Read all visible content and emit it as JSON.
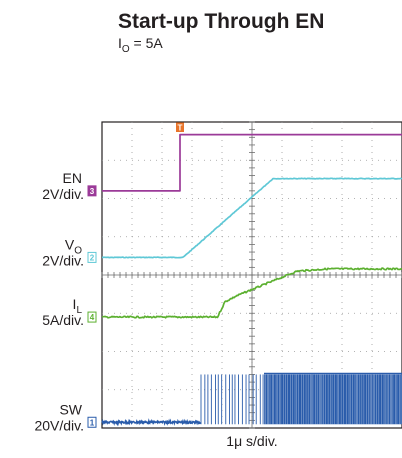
{
  "chart_data": {
    "type": "line",
    "title": "Start-up Through EN",
    "subtitle": {
      "symbol": "I",
      "subscript": "O",
      "rest": " = 5A"
    },
    "xlabel": "1μ s/div.",
    "grid": true,
    "x_divisions": 10,
    "y_divisions": 8,
    "ylim": [
      0,
      8
    ],
    "trigger_marker": {
      "label": "T",
      "color": "#e8742a"
    },
    "series": [
      {
        "name": "EN",
        "subscript": "",
        "scale": "2V/div.",
        "channel": "3",
        "color": "#9b3a98",
        "type": "step",
        "points": [
          [
            0,
            6.2
          ],
          [
            2.6,
            6.2
          ],
          [
            2.6,
            7.67
          ],
          [
            10,
            7.67
          ]
        ]
      },
      {
        "name": "V",
        "subscript": "O",
        "scale": "2V/div.",
        "channel": "2",
        "color": "#5fc8d6",
        "type": "line",
        "points": [
          [
            0,
            4.46
          ],
          [
            2.7,
            4.46
          ],
          [
            5.7,
            6.52
          ],
          [
            10,
            6.52
          ]
        ]
      },
      {
        "name": "I",
        "subscript": "L",
        "scale": "5A/div.",
        "channel": "4",
        "color": "#5cb030",
        "type": "line",
        "points": [
          [
            0,
            2.9
          ],
          [
            3.85,
            2.9
          ],
          [
            4.1,
            3.3
          ],
          [
            4.5,
            3.46
          ],
          [
            5.5,
            3.78
          ],
          [
            6.5,
            4.1
          ],
          [
            7.5,
            4.16
          ],
          [
            10,
            4.16
          ]
        ]
      },
      {
        "name": "SW",
        "subscript": "",
        "scale": "20V/div.",
        "channel": "1",
        "color": "#2a5cab",
        "type": "switching",
        "baseline": 0.15,
        "high": 1.4,
        "burst_start": 3.3,
        "burst_dense": 5.4,
        "burst_end": 10
      }
    ]
  }
}
